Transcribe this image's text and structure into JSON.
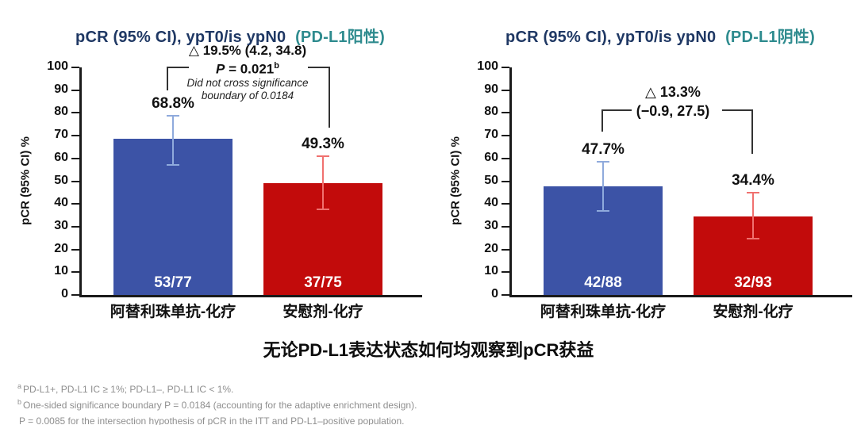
{
  "page": {
    "subtitle_cn": "无论PD-L1表达状态如何均观察到pCR获益",
    "footnotes": [
      {
        "sup": "a",
        "text": "PD-L1+, PD-L1 IC ≥ 1%; PD-L1–, PD-L1 IC < 1%."
      },
      {
        "sup": "b",
        "text": "One-sided significance boundary P = 0.0184 (accounting for the adaptive enrichment design)."
      },
      {
        "sup": "",
        "text": "P = 0.0085 for the intersection hypothesis of  pCR in the ITT and PD-L1–positive population."
      }
    ]
  },
  "chart_data": [
    {
      "type": "bar",
      "title_main": "pCR (95% CI), ypT0/is ypN0",
      "title_suffix": "(PD-L1阳性)",
      "ylabel": "pCR (95% CI) %",
      "ylim": [
        0,
        100
      ],
      "ytick_step": 10,
      "grid": false,
      "categories": [
        "阿替利珠单抗-化疗",
        "安慰剂-化疗"
      ],
      "values": [
        68.8,
        49.3
      ],
      "value_labels": [
        "68.8%",
        "49.3%"
      ],
      "ci": [
        [
          57.3,
          78.9
        ],
        [
          37.6,
          61.1
        ]
      ],
      "counts": [
        "53/77",
        "37/75"
      ],
      "bar_colors": [
        "#3c53a6",
        "#c20b0b"
      ],
      "error_colors": [
        "#8faadc",
        "#f0716f"
      ],
      "annotation": {
        "delta": "△ 19.5% (4.2, 34.8)",
        "p_prefix": "P",
        "p_rest": " = 0.021",
        "p_sup": "b",
        "note_line1": "Did not cross significance",
        "note_line2": "boundary of 0.0184"
      }
    },
    {
      "type": "bar",
      "title_main": "pCR (95% CI), ypT0/is ypN0",
      "title_suffix": "(PD-L1阴性)",
      "ylabel": "pCR (95% CI) %",
      "ylim": [
        0,
        100
      ],
      "ytick_step": 10,
      "grid": false,
      "categories": [
        "阿替利珠单抗-化疗",
        "安慰剂-化疗"
      ],
      "values": [
        47.7,
        34.4
      ],
      "value_labels": [
        "47.7%",
        "34.4%"
      ],
      "ci": [
        [
          37.0,
          58.6
        ],
        [
          24.9,
          45.1
        ]
      ],
      "counts": [
        "42/88",
        "32/93"
      ],
      "bar_colors": [
        "#3c53a6",
        "#c20b0b"
      ],
      "error_colors": [
        "#8faadc",
        "#f0716f"
      ],
      "annotation": {
        "delta": "△ 13.3%",
        "ci_text": "(−0.9, 27.5)"
      }
    }
  ]
}
